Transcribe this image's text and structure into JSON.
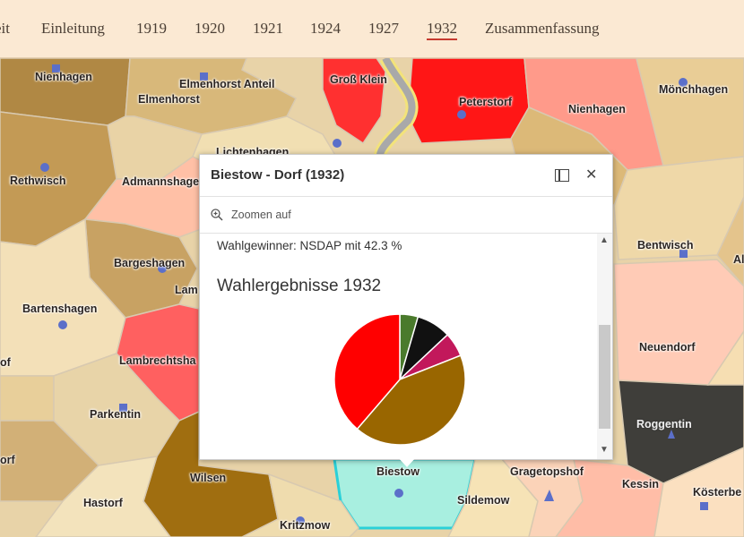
{
  "nav": {
    "items": [
      "eit",
      "Einleitung",
      "1919",
      "1920",
      "1921",
      "1924",
      "1927",
      "1932",
      "Zusammenfassung"
    ],
    "active": "1932"
  },
  "map": {
    "places": [
      "Nienhagen",
      "Elmenhorst Anteil",
      "Elmenhorst",
      "Groß Klein",
      "Peterstorf",
      "Nienhagen",
      "Mönchhagen",
      "Lichtenhagen",
      "Rethwisch",
      "Admannshage",
      "Bentwisch",
      "Al",
      "Bargeshagen",
      "Lam",
      "Bartenshagen",
      "Neuendorf",
      "of",
      "Lambrechtsha",
      "Parkentin",
      "Roggentin",
      "orf",
      "Wilsen",
      "Biestow",
      "Gragetopshof",
      "Kessin",
      "Kösterbe",
      "Hastorf",
      "Sildemow",
      "Kritzmow"
    ]
  },
  "popup": {
    "title": "Biestow - Dorf (1932)",
    "zoom_label": "Zoomen auf",
    "winner_text": "Wahlgewinner: NSDAP mit 42.3 %",
    "chart_heading": "Wahlergebnisse 1932"
  },
  "chart_data": {
    "type": "pie",
    "title": "Wahlergebnisse 1932",
    "slices": [
      {
        "color": "#4a7a2c",
        "value": 4.5
      },
      {
        "color": "#111111",
        "value": 8.5
      },
      {
        "color": "#c2185b",
        "value": 6.0
      },
      {
        "color": "#996600",
        "value": 42.3
      },
      {
        "color": "#ff0000",
        "value": 38.7
      }
    ]
  },
  "colors": {
    "accent": "#c63a2f",
    "nav_bg": "#fbe9d3"
  }
}
